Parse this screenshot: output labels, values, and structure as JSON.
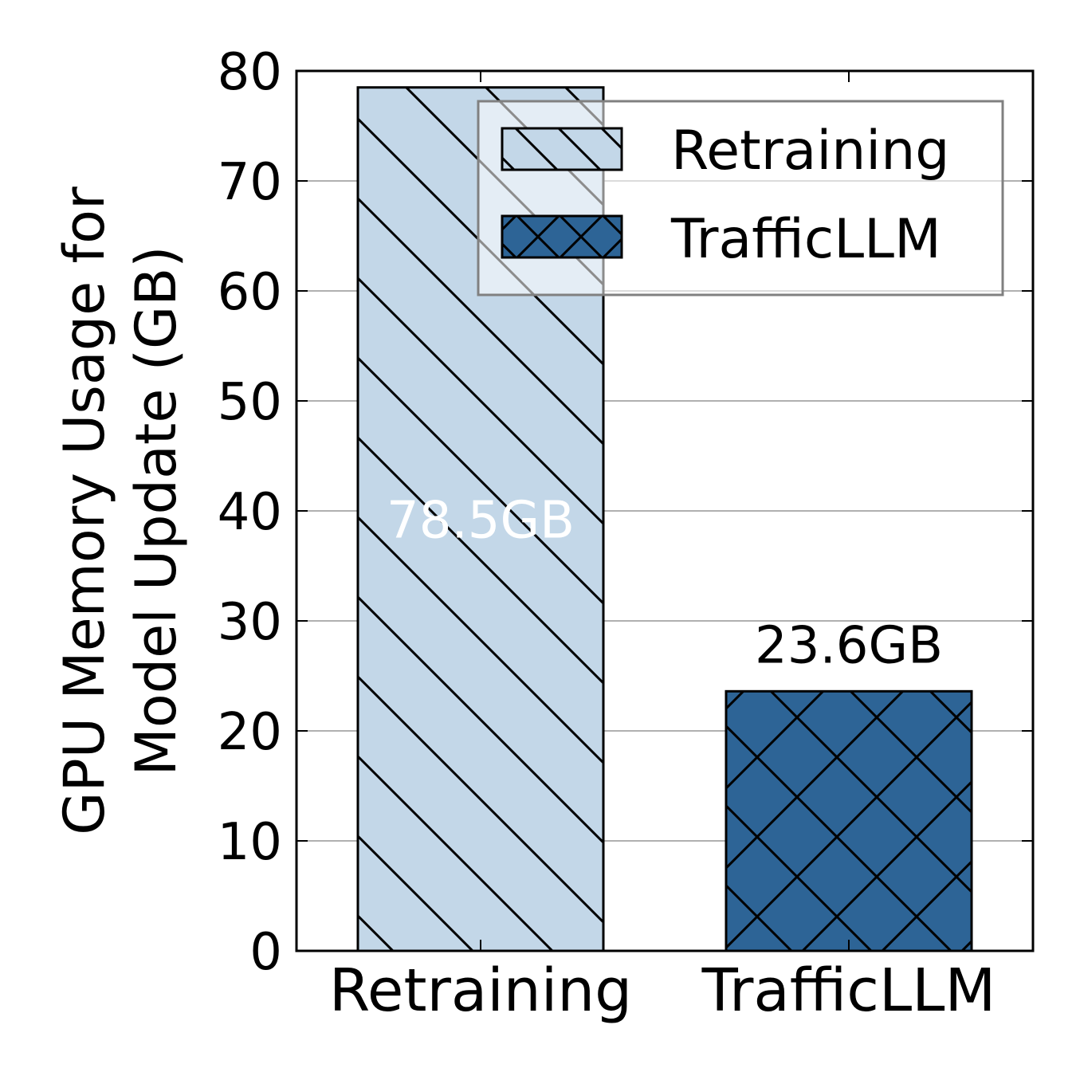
{
  "chart_data": {
    "type": "bar",
    "categories": [
      "Retraining",
      "TrafficLLM"
    ],
    "values": [
      78.5,
      23.6
    ],
    "value_labels": [
      "78.5GB",
      "23.6GB"
    ],
    "ylabel_lines": [
      "GPU Memory Usage for",
      "Model Update (GB)"
    ],
    "ylim": [
      0,
      80
    ],
    "yticks": [
      0,
      10,
      20,
      30,
      40,
      50,
      60,
      70,
      80
    ],
    "grid": "horizontal",
    "legend": {
      "placement": "top-right",
      "entries": [
        "Retraining",
        "TrafficLLM"
      ]
    },
    "colors": [
      "#c3d7e8",
      "#2d6496"
    ],
    "label_colors": [
      "#ffffff",
      "#000000"
    ],
    "hatches": [
      "diagonal",
      "crosshatch"
    ]
  }
}
